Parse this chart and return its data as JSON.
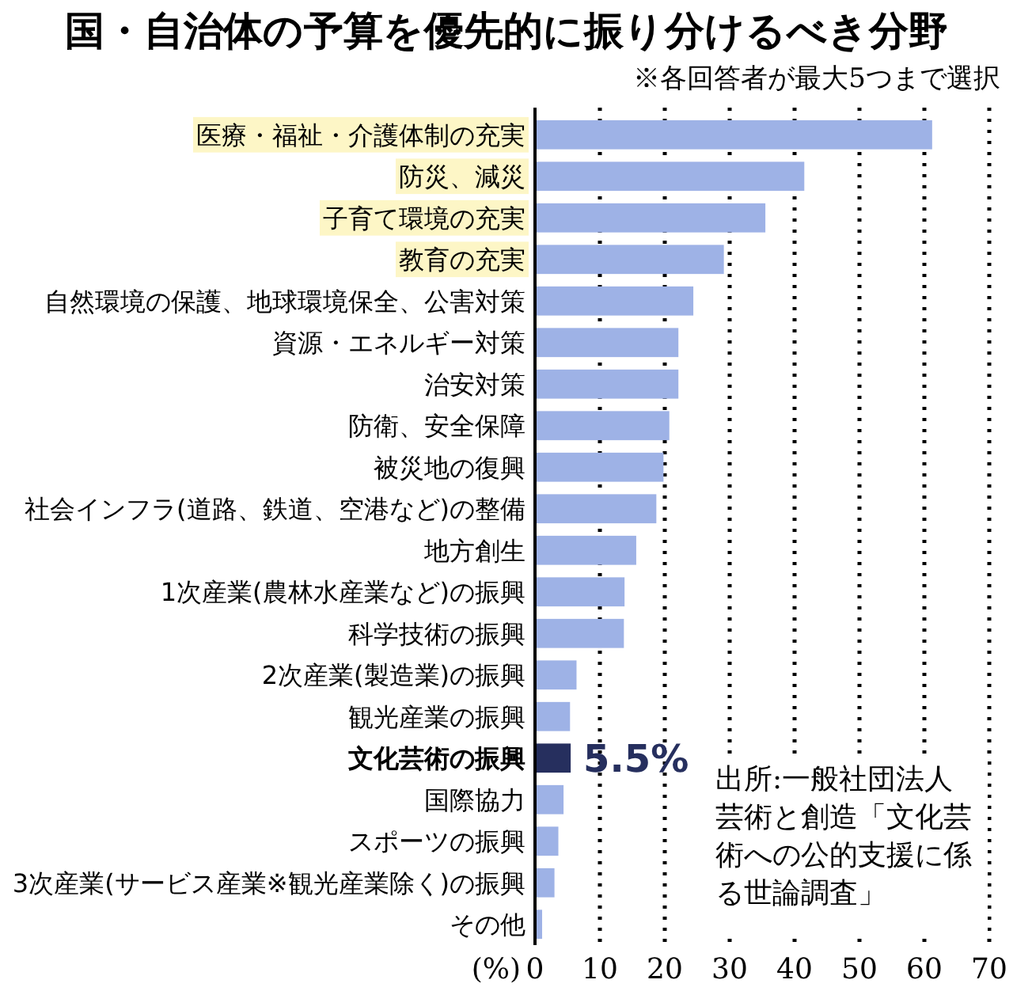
{
  "chart_data": {
    "type": "bar",
    "orientation": "horizontal",
    "title": "国・自治体の予算を優先的に振り分けるべき分野",
    "subtitle": "※各回答者が最大5つまで選択",
    "xlabel": "(%)",
    "categories": [
      "医療・福祉・介護体制の充実",
      "防災、減災",
      "子育て環境の充実",
      "教育の充実",
      "自然環境の保護、地球環境保全、公害対策",
      "資源・エネルギー対策",
      "治安対策",
      "防衛、安全保障",
      "被災地の復興",
      "社会インフラ(道路、鉄道、空港など)の整備",
      "地方創生",
      "1次産業(農林水産業など)の振興",
      "科学技術の振興",
      "2次産業(製造業)の振興",
      "観光産業の振興",
      "文化芸術の振興",
      "国際協力",
      "スポーツの振興",
      "3次産業(サービス産業※観光産業除く)の振興",
      "その他"
    ],
    "values": [
      61.2,
      41.5,
      35.5,
      29.1,
      24.4,
      22.1,
      22.1,
      20.7,
      19.8,
      18.7,
      15.6,
      13.8,
      13.7,
      6.4,
      5.4,
      5.5,
      4.4,
      3.6,
      3.0,
      1.1
    ],
    "colors": [
      "#9eb2e6",
      "#9eb2e6",
      "#9eb2e6",
      "#9eb2e6",
      "#9eb2e6",
      "#9eb2e6",
      "#9eb2e6",
      "#9eb2e6",
      "#9eb2e6",
      "#9eb2e6",
      "#9eb2e6",
      "#9eb2e6",
      "#9eb2e6",
      "#9eb2e6",
      "#9eb2e6",
      "#262f5e",
      "#9eb2e6",
      "#9eb2e6",
      "#9eb2e6",
      "#9eb2e6"
    ],
    "value_labels": [
      null,
      null,
      null,
      null,
      null,
      null,
      null,
      null,
      null,
      null,
      null,
      null,
      null,
      null,
      null,
      "5.5%",
      null,
      null,
      null,
      null
    ],
    "xlim": [
      0,
      70
    ],
    "xticks": [
      0,
      10,
      20,
      30,
      40,
      50,
      60,
      70
    ],
    "grid": "x",
    "annotations": [
      "出所:一般社団法人芸術と創造「文化芸術への公的支援に係る世論調査」"
    ]
  }
}
